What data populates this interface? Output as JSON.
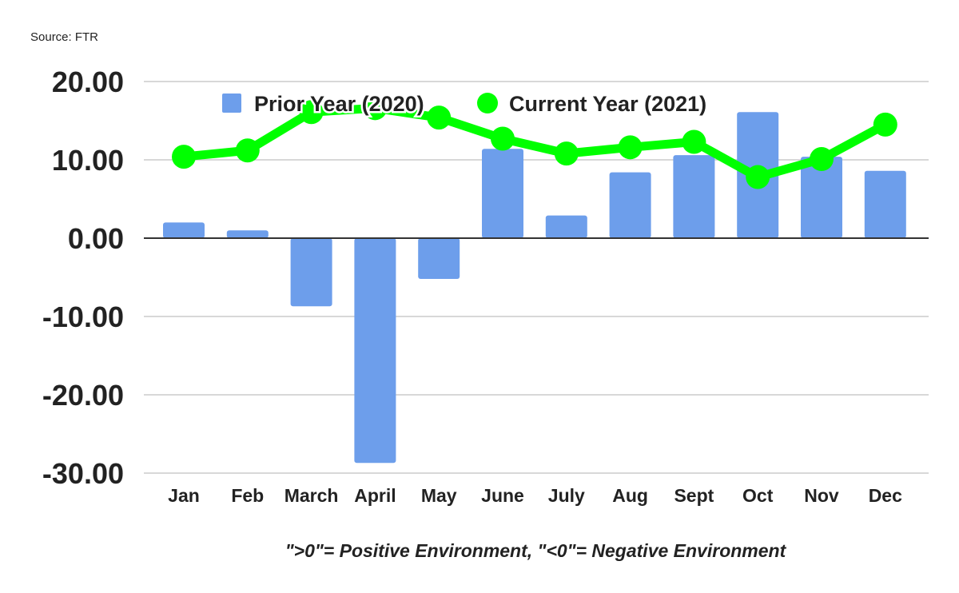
{
  "source": "Source: FTR",
  "note": "\">0\"= Positive Environment, \"<0\"= Negative Environment",
  "chart_data": {
    "type": "bar+line",
    "categories": [
      "Jan",
      "Feb",
      "March",
      "April",
      "May",
      "June",
      "July",
      "Aug",
      "Sept",
      "Oct",
      "Nov",
      "Dec"
    ],
    "series": [
      {
        "name": "Prior Year (2020)",
        "type": "bar",
        "color": "#6d9eeb",
        "values": [
          2.0,
          1.0,
          -8.7,
          -28.7,
          -5.2,
          11.4,
          2.9,
          8.4,
          10.6,
          16.1,
          10.4,
          8.6
        ]
      },
      {
        "name": "Current Year (2021)",
        "type": "line",
        "color": "#00ff00",
        "values": [
          10.4,
          11.2,
          16.1,
          16.6,
          15.4,
          12.7,
          10.8,
          11.6,
          12.3,
          7.8,
          10.1,
          14.5
        ]
      }
    ],
    "yticks": [
      "20.00",
      "10.00",
      "0.00",
      "-10.00",
      "-20.00",
      "-30.00"
    ],
    "ylim": [
      -30,
      20
    ],
    "grid": true,
    "legend": "top"
  }
}
